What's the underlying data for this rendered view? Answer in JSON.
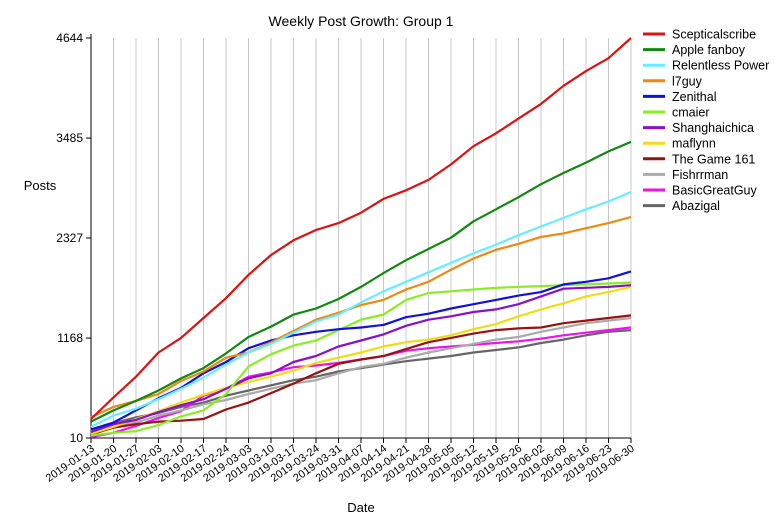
{
  "chart_data": {
    "type": "line",
    "title": "Weekly Post Growth: Group 1",
    "xlabel": "Date",
    "ylabel": "Posts",
    "yticks": [
      10,
      1168,
      2327,
      3485,
      4644
    ],
    "ylim": [
      10,
      4644
    ],
    "grid": "vertical",
    "legend_position": "right",
    "x": [
      "2019-01-13",
      "2019-01-20",
      "2019-01-27",
      "2019-02-03",
      "2019-02-10",
      "2019-02-17",
      "2019-02-24",
      "2019-03-03",
      "2019-03-10",
      "2019-03-17",
      "2019-03-24",
      "2019-03-31",
      "2019-04-07",
      "2019-04-14",
      "2019-04-21",
      "2019-04-28",
      "2019-05-05",
      "2019-05-12",
      "2019-05-19",
      "2019-05-26",
      "2019-06-02",
      "2019-06-09",
      "2019-06-16",
      "2019-06-23",
      "2019-06-30"
    ],
    "series": [
      {
        "name": "Scepticalscribe",
        "color": "#dd1111",
        "values": [
          230,
          480,
          720,
          1000,
          1170,
          1400,
          1630,
          1900,
          2130,
          2300,
          2420,
          2500,
          2620,
          2780,
          2880,
          3000,
          3180,
          3390,
          3540,
          3710,
          3880,
          4090,
          4260,
          4410,
          4644
        ]
      },
      {
        "name": "Apple fanboy",
        "color": "#118811",
        "values": [
          200,
          330,
          440,
          560,
          700,
          820,
          990,
          1180,
          1300,
          1440,
          1510,
          1620,
          1760,
          1920,
          2070,
          2200,
          2330,
          2520,
          2660,
          2800,
          2950,
          3080,
          3200,
          3330,
          3440
        ]
      },
      {
        "name": "Relentless Power",
        "color": "#66eeff",
        "values": [
          140,
          270,
          350,
          460,
          580,
          710,
          860,
          1000,
          1100,
          1230,
          1360,
          1440,
          1580,
          1710,
          1820,
          1930,
          2040,
          2150,
          2250,
          2360,
          2460,
          2560,
          2660,
          2750,
          2860
        ]
      },
      {
        "name": "l7guy",
        "color": "#ee8811",
        "values": [
          250,
          370,
          440,
          520,
          670,
          780,
          940,
          1000,
          1120,
          1250,
          1380,
          1460,
          1550,
          1610,
          1730,
          1820,
          1960,
          2090,
          2190,
          2260,
          2340,
          2380,
          2440,
          2500,
          2570
        ]
      },
      {
        "name": "Zenithal",
        "color": "#1111dd",
        "values": [
          110,
          190,
          330,
          470,
          590,
          760,
          890,
          1050,
          1140,
          1200,
          1240,
          1270,
          1290,
          1320,
          1410,
          1450,
          1510,
          1560,
          1610,
          1660,
          1700,
          1790,
          1820,
          1860,
          1940
        ]
      },
      {
        "name": "cmaier",
        "color": "#88ee22",
        "values": [
          40,
          70,
          90,
          160,
          260,
          330,
          520,
          840,
          980,
          1080,
          1140,
          1260,
          1380,
          1440,
          1610,
          1690,
          1710,
          1730,
          1750,
          1760,
          1770,
          1780,
          1790,
          1800,
          1810
        ]
      },
      {
        "name": "Shanghaichica",
        "color": "#8811cc",
        "values": [
          80,
          170,
          220,
          310,
          390,
          460,
          580,
          700,
          760,
          890,
          960,
          1070,
          1140,
          1210,
          1310,
          1380,
          1420,
          1470,
          1500,
          1560,
          1650,
          1740,
          1750,
          1760,
          1780
        ]
      },
      {
        "name": "maflynn",
        "color": "#eedd11",
        "values": [
          60,
          140,
          230,
          320,
          420,
          510,
          590,
          660,
          720,
          790,
          880,
          940,
          1000,
          1070,
          1120,
          1150,
          1200,
          1270,
          1330,
          1420,
          1500,
          1570,
          1650,
          1700,
          1760
        ]
      },
      {
        "name": "The Game 161",
        "color": "#991111",
        "values": [
          50,
          130,
          170,
          200,
          210,
          230,
          340,
          420,
          530,
          640,
          760,
          870,
          920,
          960,
          1040,
          1120,
          1170,
          1220,
          1260,
          1280,
          1290,
          1340,
          1370,
          1400,
          1430
        ]
      },
      {
        "name": "Fishrrman",
        "color": "#aaaaaa",
        "values": [
          90,
          150,
          190,
          270,
          330,
          400,
          450,
          520,
          580,
          640,
          680,
          760,
          830,
          870,
          940,
          1000,
          1050,
          1100,
          1150,
          1180,
          1240,
          1290,
          1340,
          1370,
          1400
        ]
      },
      {
        "name": "BasicGreatGuy",
        "color": "#ee11ee",
        "values": [
          20,
          70,
          150,
          240,
          320,
          500,
          580,
          720,
          770,
          830,
          850,
          880,
          920,
          960,
          1020,
          1050,
          1070,
          1090,
          1110,
          1130,
          1160,
          1200,
          1230,
          1260,
          1290
        ]
      },
      {
        "name": "Abazigal",
        "color": "#666666",
        "values": [
          100,
          180,
          250,
          300,
          370,
          420,
          500,
          560,
          620,
          680,
          720,
          780,
          820,
          860,
          900,
          930,
          960,
          1000,
          1030,
          1060,
          1110,
          1150,
          1200,
          1240,
          1260
        ]
      }
    ]
  }
}
